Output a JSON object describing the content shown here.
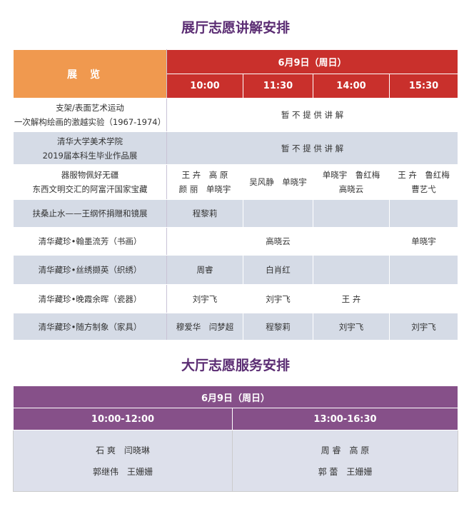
{
  "guide_section": {
    "title": "展厅志愿讲解安排",
    "exhibit_header": "展览",
    "date": "6月9日（周日）",
    "times": [
      "10:00",
      "11:30",
      "14:00",
      "15:30"
    ],
    "rows": [
      {
        "exhibit": [
          "支架/表面艺术运动",
          "一次解构绘画的激越实验（1967-1974）"
        ],
        "merged": "暂 不 提 供 讲 解"
      },
      {
        "exhibit": [
          "清华大学美术学院",
          "2019届本科生毕业作品展"
        ],
        "merged": "暂 不 提 供 讲 解"
      },
      {
        "exhibit": [
          "器服物佩好无疆",
          "东西文明交汇的阿富汗国家宝藏"
        ],
        "cells": [
          [
            "王 卉　高 原",
            "颜 丽　单晓宇"
          ],
          [
            "吴风静　单晓宇"
          ],
          [
            "单晓宇　鲁红梅",
            "高晓云"
          ],
          [
            "王 卉　鲁红梅",
            "曹艺弋"
          ]
        ]
      },
      {
        "exhibit": [
          "扶桑止水——王纲怀捐赠和镜展"
        ],
        "cells": [
          "程黎莉",
          "",
          "",
          ""
        ]
      },
      {
        "exhibit": [
          "清华藏珍•翰墨流芳（书画）"
        ],
        "merged": "高晓云",
        "last": "单晓宇"
      },
      {
        "exhibit": [
          "清华藏珍•丝绣撷英（织绣）"
        ],
        "cells": [
          "周睿",
          "白肖红",
          "",
          ""
        ]
      },
      {
        "exhibit": [
          "清华藏珍•晚霞余晖（瓷器）"
        ],
        "cells": [
          "刘宇飞",
          "刘宇飞",
          "王 卉",
          ""
        ]
      },
      {
        "exhibit": [
          "清华藏珍•随方制象（家具）"
        ],
        "cells": [
          "穆爱华　闫梦超",
          "程黎莉",
          "刘宇飞",
          "刘宇飞"
        ]
      }
    ]
  },
  "service_section": {
    "title": "大厅志愿服务安排",
    "date": "6月9日（周日）",
    "slots": [
      {
        "time": "10:00-12:00",
        "names": [
          "石 爽　闫晓琳",
          "郭继伟　王姗姗"
        ]
      },
      {
        "time": "13:00-16:30",
        "names": [
          "周 睿　高 原",
          "郭 蕾　王姗姗"
        ]
      }
    ]
  },
  "colors": {
    "title": "#5b2d73",
    "exhibit_header": "#f0994f",
    "red_header": "#c9302c",
    "purple_header": "#865089",
    "row_gray": "#d5dbe6"
  }
}
